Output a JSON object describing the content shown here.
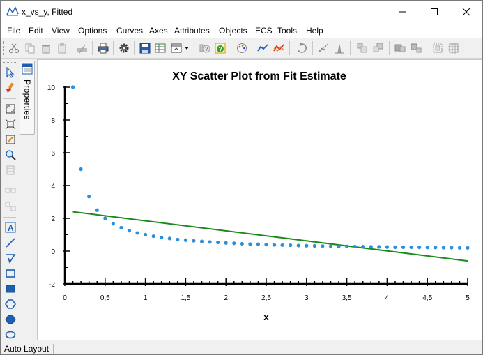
{
  "window": {
    "title": "x_vs_y, Fitted"
  },
  "menu": {
    "items": [
      {
        "label": "File"
      },
      {
        "label": "Edit"
      },
      {
        "label": "View"
      },
      {
        "label": "Options"
      },
      {
        "label": "Curves"
      },
      {
        "label": "Axes"
      },
      {
        "label": "Attributes"
      },
      {
        "label": "Objects"
      },
      {
        "label": "ECS"
      },
      {
        "label": "Tools"
      },
      {
        "label": "Help"
      }
    ]
  },
  "side_panel": {
    "tab_label": "Properties"
  },
  "status": {
    "text": "Auto Layout"
  },
  "colors": {
    "scatter": "#2b8fdc",
    "fit_line": "#1a8a1a",
    "accent": "#1e5fb3"
  },
  "chart_data": {
    "type": "scatter",
    "title": "XY Scatter Plot from Fit Estimate",
    "xlabel": "x",
    "ylabel": "",
    "xlim": [
      0,
      5
    ],
    "ylim": [
      -2,
      10
    ],
    "x_ticks": [
      "0",
      "0,5",
      "1",
      "1,5",
      "2",
      "2,5",
      "3",
      "3,5",
      "4",
      "4,5",
      "5"
    ],
    "y_ticks": [
      "-2",
      "0",
      "2",
      "4",
      "6",
      "8",
      "10"
    ],
    "grid": false,
    "series": [
      {
        "kind": "scatter",
        "x": [
          0.1,
          0.2,
          0.3,
          0.4,
          0.5,
          0.6,
          0.7,
          0.8,
          0.9,
          1.0,
          1.1,
          1.2,
          1.3,
          1.4,
          1.5,
          1.6,
          1.7,
          1.8,
          1.9,
          2.0,
          2.1,
          2.2,
          2.3,
          2.4,
          2.5,
          2.6,
          2.7,
          2.8,
          2.9,
          3.0,
          3.1,
          3.2,
          3.3,
          3.4,
          3.5,
          3.6,
          3.7,
          3.8,
          3.9,
          4.0,
          4.1,
          4.2,
          4.3,
          4.4,
          4.5,
          4.6,
          4.7,
          4.8,
          4.9,
          5.0
        ],
        "y": [
          10.0,
          5.0,
          3.33,
          2.5,
          2.0,
          1.67,
          1.43,
          1.25,
          1.11,
          1.0,
          0.91,
          0.83,
          0.77,
          0.71,
          0.67,
          0.63,
          0.59,
          0.56,
          0.53,
          0.5,
          0.48,
          0.45,
          0.43,
          0.42,
          0.4,
          0.38,
          0.37,
          0.36,
          0.34,
          0.33,
          0.32,
          0.31,
          0.3,
          0.29,
          0.29,
          0.28,
          0.27,
          0.26,
          0.26,
          0.25,
          0.24,
          0.24,
          0.23,
          0.23,
          0.22,
          0.22,
          0.21,
          0.21,
          0.2,
          0.2
        ]
      },
      {
        "kind": "line",
        "x": [
          0.1,
          5.0
        ],
        "y": [
          2.4,
          -0.6
        ]
      }
    ]
  }
}
